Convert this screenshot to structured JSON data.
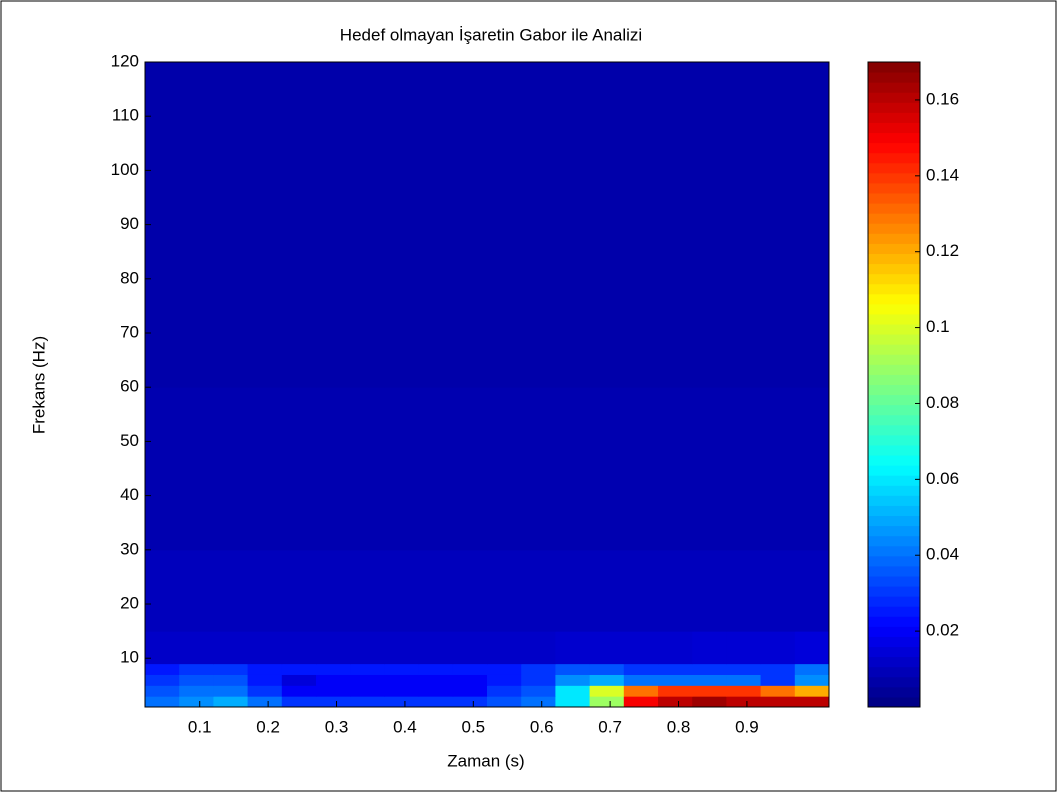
{
  "chart_data": {
    "type": "heatmap",
    "title": "Hedef olmayan İşaretin Gabor ile Analizi",
    "x_label": "Zaman (s)",
    "y_label": "Frekans (Hz)",
    "colormap": "jet",
    "x_bins": [
      0.02,
      0.07,
      0.12,
      0.17,
      0.22,
      0.27,
      0.32,
      0.37,
      0.42,
      0.47,
      0.52,
      0.57,
      0.62,
      0.67,
      0.72,
      0.77,
      0.82,
      0.87,
      0.92,
      0.97,
      1.02
    ],
    "y_bins": [
      1,
      3,
      5,
      7,
      9,
      15,
      30,
      60,
      120
    ],
    "values": [
      [
        0.04,
        0.045,
        0.05,
        0.04,
        0.03,
        0.03,
        0.03,
        0.03,
        0.03,
        0.03,
        0.035,
        0.04,
        0.06,
        0.09,
        0.15,
        0.16,
        0.165,
        0.16,
        0.16,
        0.16
      ],
      [
        0.035,
        0.04,
        0.04,
        0.03,
        0.02,
        0.02,
        0.02,
        0.02,
        0.02,
        0.02,
        0.03,
        0.035,
        0.06,
        0.1,
        0.13,
        0.14,
        0.14,
        0.14,
        0.13,
        0.12
      ],
      [
        0.03,
        0.035,
        0.035,
        0.025,
        0.015,
        0.02,
        0.02,
        0.02,
        0.02,
        0.02,
        0.025,
        0.03,
        0.045,
        0.05,
        0.04,
        0.04,
        0.04,
        0.04,
        0.03,
        0.045
      ],
      [
        0.025,
        0.03,
        0.03,
        0.025,
        0.025,
        0.025,
        0.025,
        0.025,
        0.025,
        0.025,
        0.025,
        0.03,
        0.035,
        0.035,
        0.03,
        0.03,
        0.03,
        0.03,
        0.03,
        0.04
      ],
      [
        0.012,
        0.012,
        0.012,
        0.012,
        0.012,
        0.012,
        0.012,
        0.012,
        0.012,
        0.012,
        0.012,
        0.012,
        0.013,
        0.013,
        0.013,
        0.013,
        0.014,
        0.014,
        0.014,
        0.015
      ],
      [
        0.01,
        0.01,
        0.01,
        0.01,
        0.01,
        0.01,
        0.01,
        0.01,
        0.01,
        0.01,
        0.01,
        0.01,
        0.01,
        0.01,
        0.01,
        0.01,
        0.01,
        0.01,
        0.01,
        0.01
      ],
      [
        0.008,
        0.008,
        0.008,
        0.008,
        0.008,
        0.008,
        0.008,
        0.008,
        0.008,
        0.008,
        0.008,
        0.008,
        0.008,
        0.008,
        0.008,
        0.008,
        0.008,
        0.008,
        0.008,
        0.008
      ],
      [
        0.007,
        0.007,
        0.007,
        0.007,
        0.007,
        0.007,
        0.007,
        0.007,
        0.007,
        0.007,
        0.007,
        0.007,
        0.007,
        0.007,
        0.007,
        0.007,
        0.007,
        0.007,
        0.007,
        0.007
      ]
    ],
    "xlim": [
      0.02,
      1.02
    ],
    "ylim": [
      1,
      120
    ],
    "xticks": [
      0.1,
      0.2,
      0.3,
      0.4,
      0.5,
      0.6,
      0.7,
      0.8,
      0.9
    ],
    "yticks": [
      10,
      20,
      30,
      40,
      50,
      60,
      70,
      80,
      90,
      100,
      110,
      120
    ],
    "clim": [
      0,
      0.17
    ],
    "cticks": [
      0.02,
      0.04,
      0.06,
      0.08,
      0.1,
      0.12,
      0.14,
      0.16
    ]
  }
}
